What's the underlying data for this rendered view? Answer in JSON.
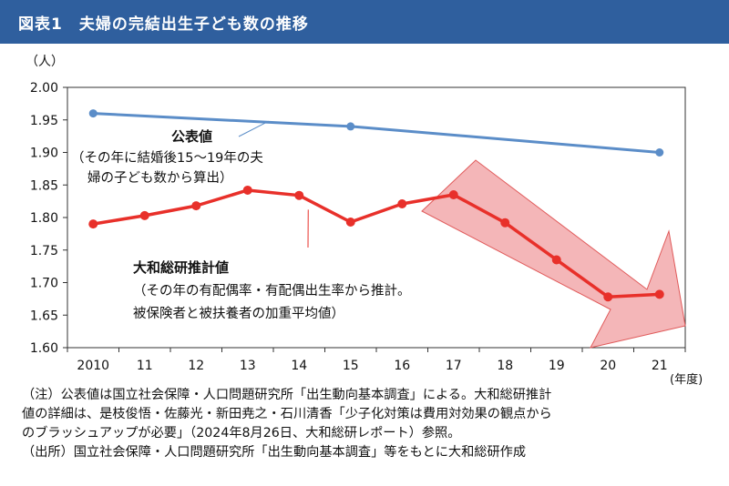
{
  "header": {
    "title": "図表1　夫婦の完結出生子ども数の推移"
  },
  "chart_data": {
    "type": "line",
    "y_unit": "（人）",
    "x_unit": "(年度)",
    "ylim": [
      1.6,
      2.0
    ],
    "y_ticks": [
      "1.60",
      "1.65",
      "1.70",
      "1.75",
      "1.80",
      "1.85",
      "1.90",
      "1.95",
      "2.00"
    ],
    "x_categories": [
      "2010",
      "11",
      "12",
      "13",
      "14",
      "15",
      "16",
      "17",
      "18",
      "19",
      "20",
      "21"
    ],
    "grid": false,
    "series": [
      {
        "name": "公表値",
        "color": "#5b8dc8",
        "points": [
          {
            "x": "2010",
            "y": 1.96
          },
          {
            "x": "15",
            "y": 1.94
          },
          {
            "x": "21",
            "y": 1.9
          }
        ]
      },
      {
        "name": "大和総研推計値",
        "color": "#e8302a",
        "points": [
          {
            "x": "2010",
            "y": 1.79
          },
          {
            "x": "11",
            "y": 1.803
          },
          {
            "x": "12",
            "y": 1.818
          },
          {
            "x": "13",
            "y": 1.842
          },
          {
            "x": "14",
            "y": 1.834
          },
          {
            "x": "15",
            "y": 1.793
          },
          {
            "x": "16",
            "y": 1.821
          },
          {
            "x": "17",
            "y": 1.835
          },
          {
            "x": "18",
            "y": 1.792
          },
          {
            "x": "19",
            "y": 1.735
          },
          {
            "x": "20",
            "y": 1.678
          },
          {
            "x": "21",
            "y": 1.682
          }
        ]
      }
    ],
    "annotations": {
      "official_label": "公表値",
      "official_note_1": "（その年に結婚後15～19年の夫",
      "official_note_2": "婦の子ども数から算出）",
      "estimate_label": "大和総研推計値",
      "estimate_note_1": "（その年の有配偶率・有配偶出生率から推計。",
      "estimate_note_2": "被保険者と被扶養者の加重平均値）"
    },
    "trend_arrow_color": "#f4b6b8"
  },
  "notes": [
    "（注）公表値は国立社会保障・人口問題研究所「出生動向基本調査」による。大和総研推計",
    "値の詳細は、是枝俊悟・佐藤光・新田尭之・石川清香「少子化対策は費用対効果の観点から",
    "のブラッシュアップが必要」（2024年8月26日、大和総研レポート）参照。",
    "（出所）国立社会保障・人口問題研究所「出生動向基本調査」等をもとに大和総研作成"
  ]
}
